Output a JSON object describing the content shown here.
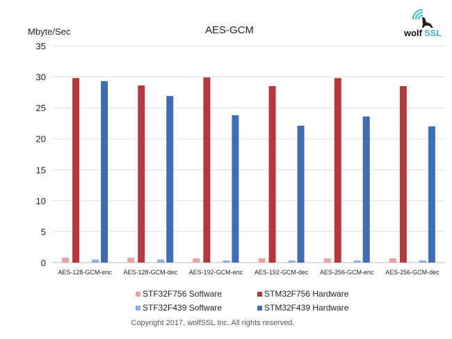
{
  "chart_data": {
    "type": "bar",
    "title": "AES-GCM",
    "ylabel": "Mbyte/Sec",
    "ylim": [
      0,
      35
    ],
    "yticks": [
      0,
      5,
      10,
      15,
      20,
      25,
      30,
      35
    ],
    "grid": true,
    "legend_placement": "bottom",
    "categories": [
      "AES-128-GCM-enc",
      "AES-128-GCM-dec",
      "AES-192-GCM-enc",
      "AES-192-GCM-dec",
      "AES-256-GCM-enc",
      "AES-256-GCM-dec"
    ],
    "series": [
      {
        "name": "STF32F756 Software",
        "color": "#e6a4a6",
        "values": [
          0.8,
          0.8,
          0.7,
          0.7,
          0.7,
          0.7
        ]
      },
      {
        "name": "STM32F756 Hardware",
        "color": "#b5393c",
        "values": [
          29.8,
          28.6,
          29.9,
          28.5,
          29.8,
          28.5
        ]
      },
      {
        "name": "STF32F439 Software",
        "color": "#8eaee0",
        "values": [
          0.5,
          0.5,
          0.35,
          0.35,
          0.35,
          0.35
        ]
      },
      {
        "name": "STM32F439 Hardware",
        "color": "#3e6db5",
        "values": [
          29.3,
          26.9,
          23.8,
          22.1,
          23.6,
          22.0
        ]
      }
    ]
  },
  "logo": {
    "text": "wolfSSL",
    "accent": "#3fb8c8"
  },
  "copyright": "Copyright 2017, wolfSSL Inc. All rights reserved."
}
